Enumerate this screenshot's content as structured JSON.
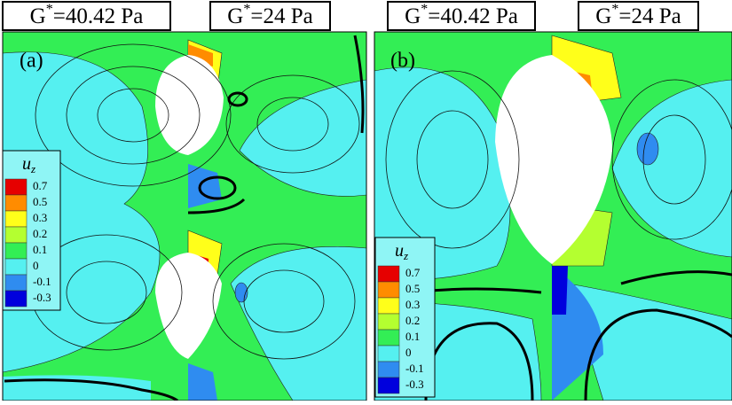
{
  "headers": [
    {
      "base": "G",
      "sup": "*",
      "rest": "=40.42 Pa"
    },
    {
      "base": "G",
      "sup": "*",
      "rest": "=24 Pa"
    },
    {
      "base": "G",
      "sup": "*",
      "rest": "=40.42 Pa"
    },
    {
      "base": "G",
      "sup": "*",
      "rest": "=24 Pa"
    }
  ],
  "panels": [
    {
      "label": "(a)"
    },
    {
      "label": "(b)"
    }
  ],
  "legend": {
    "symbol": "u",
    "subscript": "z",
    "levels": [
      0.7,
      0.5,
      0.3,
      0.2,
      0.1,
      0,
      -0.1,
      -0.3
    ],
    "colors": [
      "#e60000",
      "#ff8c00",
      "#ffff1a",
      "#b4ff30",
      "#33ee55",
      "#55f0f0",
      "#2f8cf0",
      "#0000dd"
    ]
  }
}
